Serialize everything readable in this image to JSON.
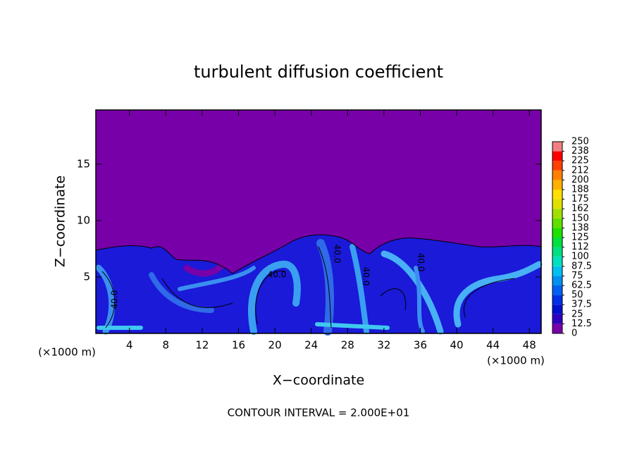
{
  "chart_data": {
    "type": "contour",
    "title": "turbulent diffusion coefficient",
    "xlabel": "X−coordinate",
    "ylabel": "Z−coordinate",
    "unit_labels": [
      "(×1000 m)",
      "(×1000 m)"
    ],
    "note": "CONTOUR INTERVAL = 2.000E+01",
    "xlim": [
      0.3,
      49.3
    ],
    "xticks": [
      4,
      8,
      12,
      16,
      20,
      24,
      28,
      32,
      36,
      40,
      44,
      48
    ],
    "ylim": [
      0,
      19.8
    ],
    "yticks": [
      5,
      10,
      15
    ],
    "contour_labels": [
      "40.0",
      "40.0",
      "40.0",
      "40.0",
      "40.0"
    ],
    "colorbar": {
      "ticks": [
        0,
        12.5,
        25,
        37.5,
        50,
        62.5,
        75,
        87.5,
        100,
        {
          "value": 112.5,
          "label": "112"
        },
        125,
        {
          "value": 137.5,
          "label": "138"
        },
        150,
        {
          "value": 162.5,
          "label": "162"
        },
        175,
        {
          "value": 187.5,
          "label": "188"
        },
        200,
        {
          "value": 212.5,
          "label": "212"
        },
        225,
        {
          "value": 237.5,
          "label": "238"
        },
        250
      ],
      "colors": [
        "#7800a8",
        "#3000c0",
        "#0010d0",
        "#0030e8",
        "#0060f0",
        "#0090f0",
        "#00c0f0",
        "#00e0c0",
        "#00e080",
        "#00e040",
        "#20e000",
        "#60e000",
        "#a0e000",
        "#e0e000",
        "#ffe000",
        "#ffb000",
        "#ff8000",
        "#ff4000",
        "#ff0000",
        "#f08080"
      ]
    }
  }
}
